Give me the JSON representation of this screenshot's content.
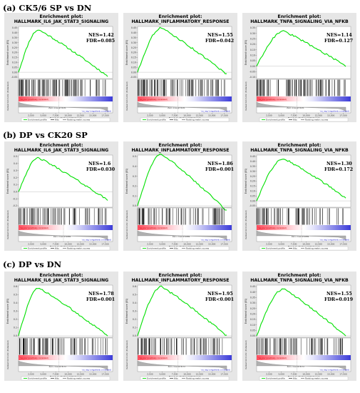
{
  "colors": {
    "curve": "#00e000",
    "hits": "#000000",
    "pos_band": "#ff4d5e",
    "neg_band": "#3b3bd9",
    "panel_bg": "#e6e6e6",
    "plot_bg": "#ffffff",
    "metric_fill": "#b0b0b0"
  },
  "common": {
    "plot_heading": "Enrichment plot:",
    "es_axis_label": "Enrichment score (ES)",
    "metric_axis_label": "Ranked list metric (PreRanked)",
    "x_axis_label": "Rank in Ordered Dataset",
    "x_tick_labels": [
      "2,500",
      "5,000",
      "7,500",
      "10,000",
      "12,500",
      "15,000",
      "17,500"
    ],
    "pos_label": "'na_pos' (positively correlated)",
    "neg_label": "'na_neg' (negatively correlated)",
    "legend": {
      "profile": "Enrichment profile",
      "hits": "Hits",
      "metric": "Ranking metric scores"
    }
  },
  "sections": [
    {
      "title": "(a) CK5/6 SP vs DN",
      "panels": [
        {
          "gene_set": "HALLMARK_IL6_JAK_STAT3_SIGNALING",
          "nes": "NES=1.42",
          "fdr": "FDR=0.085",
          "zero_cross": "Zero cross at 8131",
          "y_ticks": [
            "0.45",
            "0.40",
            "0.35",
            "0.30",
            "0.25",
            "0.20",
            "0.15",
            "0.10",
            "0.05",
            "0.00",
            "-0.05"
          ],
          "peak": 0.43,
          "end": -0.04
        },
        {
          "gene_set": "HALLMARK_INFLAMMATORY_RESPONSE",
          "nes": "NES=1.55",
          "fdr": "FDR=0.042",
          "zero_cross": "Zero cross at 8131",
          "y_ticks": [
            "0.45",
            "0.40",
            "0.35",
            "0.30",
            "0.25",
            "0.20",
            "0.15",
            "0.10",
            "0.05",
            "0.00",
            "-0.05"
          ],
          "peak": 0.45,
          "end": -0.02
        },
        {
          "gene_set": "HALLMARK_TNFA_SIGNALING_VIA_NFKB",
          "nes": "NES=1.14",
          "fdr": "FDR=0.127",
          "zero_cross": "Zero cross at 8131",
          "y_ticks": [
            "0.35",
            "0.30",
            "0.25",
            "0.20",
            "0.15",
            "0.10",
            "0.05",
            "0.00",
            "-0.05",
            "-0.10"
          ],
          "peak": 0.32,
          "end": 0.0
        }
      ]
    },
    {
      "title": "(b) DP vs CK20 SP",
      "panels": [
        {
          "gene_set": "HALLMARK_IL6_JAK_STAT3_SIGNALING",
          "nes": "NES=1.6",
          "fdr": "FDR=0.030",
          "zero_cross": "Zero cross at 9069",
          "y_ticks": [
            "0.5",
            "0.4",
            "0.3",
            "0.2",
            "0.1",
            "0.0",
            "-0.1",
            "-0.2"
          ],
          "peak": 0.48,
          "end": -0.12
        },
        {
          "gene_set": "HALLMARK_INFLAMMATORY_RESPONSE",
          "nes": "NES=1.86",
          "fdr": "FDR=0.001",
          "zero_cross": "Zero cross at 9069",
          "y_ticks": [
            "0.5",
            "0.4",
            "0.3",
            "0.2",
            "0.1",
            "0.0"
          ],
          "peak": 0.53,
          "end": -0.05
        },
        {
          "gene_set": "HALLMARK_TNFA_SIGNALING_VIA_NFKB",
          "nes": "NES=1.30",
          "fdr": "FDR=0.172",
          "zero_cross": "Zero cross at 9069",
          "y_ticks": [
            "0.45",
            "0.40",
            "0.35",
            "0.30",
            "0.25",
            "0.20",
            "0.15",
            "0.10",
            "0.05",
            "0.00",
            "-0.05"
          ],
          "peak": 0.43,
          "end": 0.03
        }
      ]
    },
    {
      "title": "(c) DP vs DN",
      "panels": [
        {
          "gene_set": "HALLMARK_IL6_JAK_STAT3_SIGNALING",
          "nes": "NES=1.78",
          "fdr": "FDR=0.001",
          "zero_cross": "Zero cross at 8172",
          "y_ticks": [
            "0.6",
            "0.5",
            "0.4",
            "0.3",
            "0.2",
            "0.1",
            "0.0"
          ],
          "peak": 0.58,
          "end": 0.0
        },
        {
          "gene_set": "HALLMARK_INFLAMMATORY_RESPONSE",
          "nes": "NES=1.95",
          "fdr": "FDR<0.001",
          "zero_cross": "Zero cross at 8172",
          "y_ticks": [
            "0.6",
            "0.5",
            "0.4",
            "0.3",
            "0.2",
            "0.1",
            "0.0"
          ],
          "peak": 0.6,
          "end": 0.0
        },
        {
          "gene_set": "HALLMARK_TNFA_SIGNALING_VIA_NFKB",
          "nes": "NES=1.55",
          "fdr": "FDR=0.019",
          "zero_cross": "Zero cross at 8172",
          "y_ticks": [
            "0.45",
            "0.40",
            "0.35",
            "0.30",
            "0.25",
            "0.20",
            "0.15",
            "0.10",
            "0.05",
            "0.00"
          ],
          "peak": 0.43,
          "end": 0.0
        }
      ]
    }
  ],
  "chart_data": {
    "type": "line",
    "xlabel": "Rank in Ordered Dataset",
    "ylabel": "Enrichment score (ES)",
    "xlim": [
      0,
      19000
    ],
    "charts": [
      {
        "section": "(a) CK5/6 SP vs DN",
        "title": "HALLMARK_IL6_JAK_STAT3_SIGNALING",
        "nes": 1.42,
        "fdr": 0.085,
        "es_peak": 0.43,
        "es_end": -0.04,
        "zero_cross": 8131
      },
      {
        "section": "(a) CK5/6 SP vs DN",
        "title": "HALLMARK_INFLAMMATORY_RESPONSE",
        "nes": 1.55,
        "fdr": 0.042,
        "es_peak": 0.45,
        "es_end": -0.02,
        "zero_cross": 8131
      },
      {
        "section": "(a) CK5/6 SP vs DN",
        "title": "HALLMARK_TNFA_SIGNALING_VIA_NFKB",
        "nes": 1.14,
        "fdr": 0.127,
        "es_peak": 0.32,
        "es_end": 0.0,
        "zero_cross": 8131
      },
      {
        "section": "(b) DP vs CK20 SP",
        "title": "HALLMARK_IL6_JAK_STAT3_SIGNALING",
        "nes": 1.6,
        "fdr": 0.03,
        "es_peak": 0.48,
        "es_end": -0.12,
        "zero_cross": 9069
      },
      {
        "section": "(b) DP vs CK20 SP",
        "title": "HALLMARK_INFLAMMATORY_RESPONSE",
        "nes": 1.86,
        "fdr": 0.001,
        "es_peak": 0.53,
        "es_end": -0.05,
        "zero_cross": 9069
      },
      {
        "section": "(b) DP vs CK20 SP",
        "title": "HALLMARK_TNFA_SIGNALING_VIA_NFKB",
        "nes": 1.3,
        "fdr": 0.172,
        "es_peak": 0.43,
        "es_end": 0.03,
        "zero_cross": 9069
      },
      {
        "section": "(c) DP vs DN",
        "title": "HALLMARK_IL6_JAK_STAT3_SIGNALING",
        "nes": 1.78,
        "fdr": 0.001,
        "es_peak": 0.58,
        "es_end": 0.0,
        "zero_cross": 8172
      },
      {
        "section": "(c) DP vs DN",
        "title": "HALLMARK_INFLAMMATORY_RESPONSE",
        "nes": 1.95,
        "fdr": "<0.001",
        "es_peak": 0.6,
        "es_end": 0.0,
        "zero_cross": 8172
      },
      {
        "section": "(c) DP vs DN",
        "title": "HALLMARK_TNFA_SIGNALING_VIA_NFKB",
        "nes": 1.55,
        "fdr": 0.019,
        "es_peak": 0.43,
        "es_end": 0.0,
        "zero_cross": 8172
      }
    ]
  }
}
